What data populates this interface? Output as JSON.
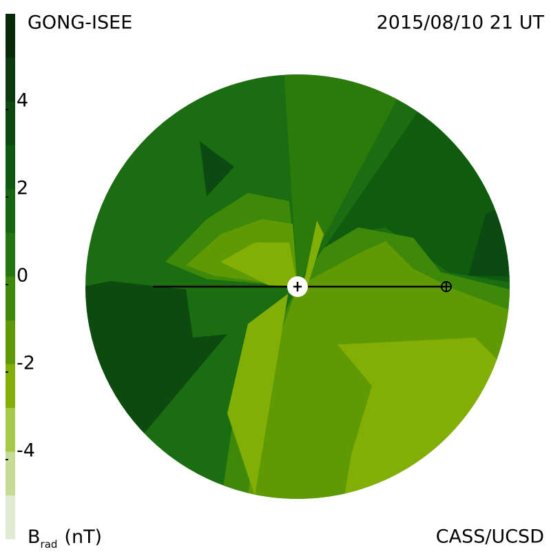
{
  "header": {
    "left": "GONG-ISEE",
    "right": "2015/08/10 21 UT"
  },
  "footer": {
    "label": "B",
    "label_sub": "rad",
    "label_unit": "(nT)",
    "credit": "CASS/UCSD"
  },
  "colorbar": {
    "range": [
      -6,
      6
    ],
    "ticks": [
      4,
      2,
      0,
      -2,
      -4
    ],
    "colors": [
      "#dfead0",
      "#c6dc95",
      "#a6c94a",
      "#82ae06",
      "#5f9a05",
      "#3e880a",
      "#237511",
      "#166510",
      "#0f5810",
      "#0c4a10",
      "#0a3a0e",
      "#082a0a"
    ]
  }
}
